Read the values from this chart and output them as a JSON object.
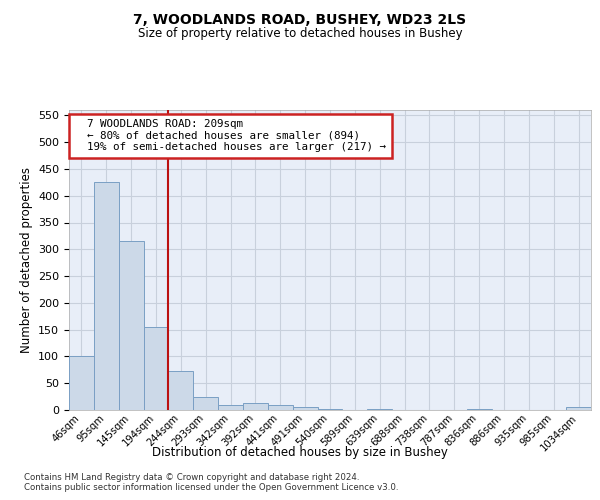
{
  "title1": "7, WOODLANDS ROAD, BUSHEY, WD23 2LS",
  "title2": "Size of property relative to detached houses in Bushey",
  "xlabel": "Distribution of detached houses by size in Bushey",
  "ylabel": "Number of detached properties",
  "footnote1": "Contains HM Land Registry data © Crown copyright and database right 2024.",
  "footnote2": "Contains public sector information licensed under the Open Government Licence v3.0.",
  "bin_labels": [
    "46sqm",
    "95sqm",
    "145sqm",
    "194sqm",
    "244sqm",
    "293sqm",
    "342sqm",
    "392sqm",
    "441sqm",
    "491sqm",
    "540sqm",
    "589sqm",
    "639sqm",
    "688sqm",
    "738sqm",
    "787sqm",
    "836sqm",
    "886sqm",
    "935sqm",
    "985sqm",
    "1034sqm"
  ],
  "bar_heights": [
    100,
    425,
    315,
    155,
    72,
    25,
    10,
    14,
    10,
    5,
    1,
    0,
    1,
    0,
    0,
    0,
    1,
    0,
    0,
    0,
    5
  ],
  "bar_color": "#ccd9e8",
  "bar_edge_color": "#7a9fc4",
  "grid_color": "#c8d0dc",
  "background_color": "#e8eef8",
  "red_line_index": 3.5,
  "annotation_text": "  7 WOODLANDS ROAD: 209sqm\n  ← 80% of detached houses are smaller (894)\n  19% of semi-detached houses are larger (217) →",
  "annotation_box_facecolor": "#ffffff",
  "annotation_box_edgecolor": "#cc2222",
  "ylim": [
    0,
    560
  ],
  "yticks": [
    0,
    50,
    100,
    150,
    200,
    250,
    300,
    350,
    400,
    450,
    500,
    550
  ]
}
